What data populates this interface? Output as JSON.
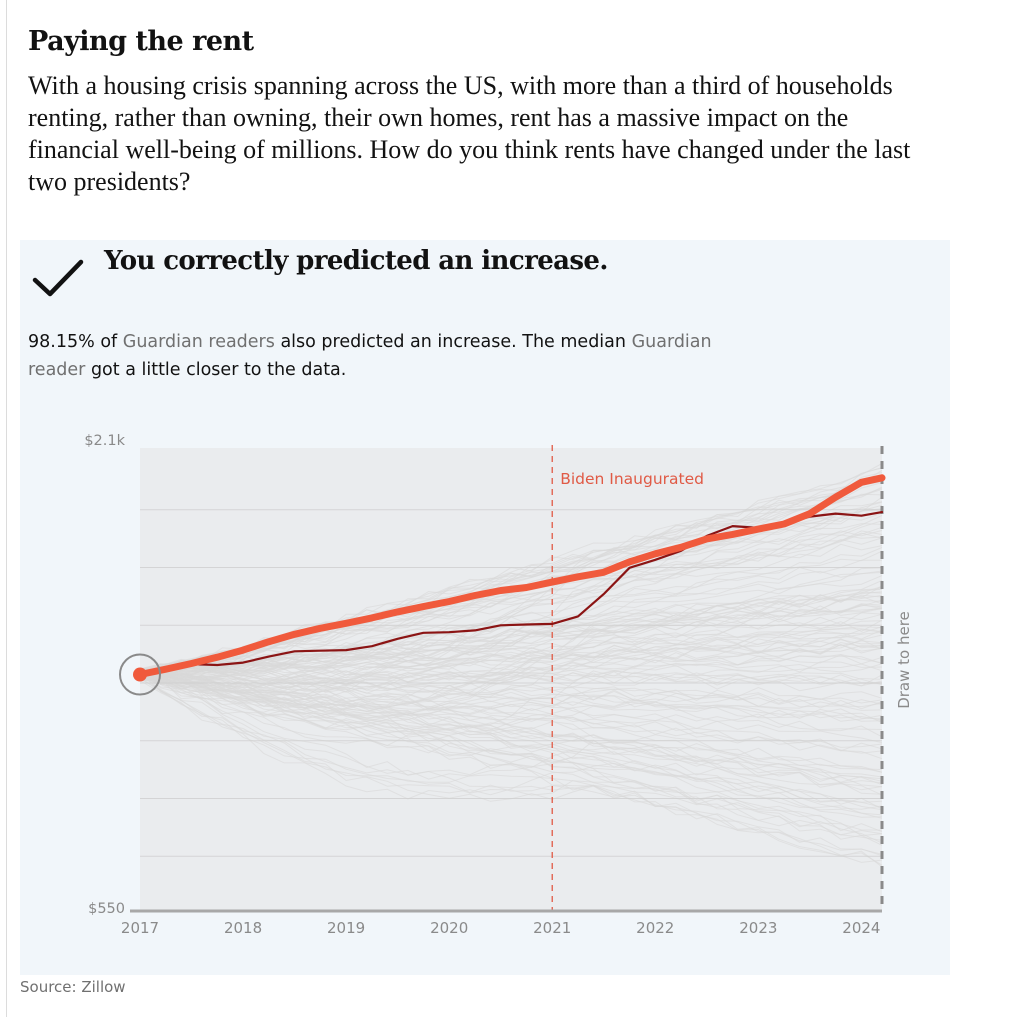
{
  "title": "Paying the rent",
  "standfirst": "With a housing crisis spanning across the US, with more than a third of households renting, rather than owning, their own homes, rent has a massive impact on the financial well-being of millions. How do you think rents have changed under the last two presidents?",
  "result": {
    "verdict": "You correctly predicted an increase.",
    "verdict_icon": "check-icon",
    "percent": "98.15%",
    "of": "of",
    "readers_1": "Guardian readers",
    "mid": "also predicted an increase. The median",
    "readers_2": "Guardian reader",
    "end": "got a little closer to the data."
  },
  "source": "Source: Zillow",
  "colors": {
    "actual_line": "#8b1414",
    "user_line": "#f05a3c",
    "reader_lines": "#d9d9d9",
    "annotation": "#e05a45",
    "panel_background": "#f1f6fa"
  },
  "chart_data": {
    "type": "line",
    "title": "",
    "xlabel": "",
    "ylabel": "",
    "xlim": [
      2017,
      2024.2
    ],
    "ylim": [
      550,
      2100
    ],
    "x_ticks": [
      "2017",
      "2018",
      "2019",
      "2020",
      "2021",
      "2022",
      "2023",
      "2024"
    ],
    "y_ticks": [
      "$550",
      "$2.1k"
    ],
    "grid": "horizontal",
    "annotations": [
      {
        "x": 2021.0,
        "label": "Biden Inaugurated"
      },
      {
        "x": 2024.2,
        "label": "Draw to here"
      }
    ],
    "reader_guesses": {
      "description_shown": "faint grey lines showing other readers' drawings",
      "color": "#d9d9d9"
    },
    "series": [
      {
        "role": "actual",
        "x": [
          2017.0,
          2017.25,
          2017.5,
          2017.75,
          2018.0,
          2018.25,
          2018.5,
          2018.75,
          2019.0,
          2019.25,
          2019.5,
          2019.75,
          2020.0,
          2020.25,
          2020.5,
          2020.75,
          2021.0,
          2021.25,
          2021.5,
          2021.75,
          2022.0,
          2022.25,
          2022.5,
          2022.75,
          2023.0,
          2023.25,
          2023.5,
          2023.75,
          2024.0,
          2024.2
        ],
        "y": [
          1340,
          1365,
          1375,
          1372,
          1380,
          1400,
          1418,
          1420,
          1422,
          1435,
          1460,
          1480,
          1482,
          1488,
          1505,
          1508,
          1510,
          1535,
          1610,
          1698,
          1725,
          1755,
          1805,
          1838,
          1832,
          1845,
          1870,
          1880,
          1873,
          1885
        ]
      },
      {
        "role": "your guess",
        "x": [
          2017.0,
          2017.25,
          2017.5,
          2017.75,
          2018.0,
          2018.25,
          2018.5,
          2018.75,
          2019.0,
          2019.25,
          2019.5,
          2019.75,
          2020.0,
          2020.25,
          2020.5,
          2020.75,
          2021.0,
          2021.25,
          2021.5,
          2021.75,
          2022.0,
          2022.25,
          2022.5,
          2022.75,
          2023.0,
          2023.25,
          2023.5,
          2023.75,
          2024.0,
          2024.2
        ],
        "y": [
          1340,
          1358,
          1377,
          1398,
          1422,
          1450,
          1475,
          1495,
          1512,
          1530,
          1550,
          1568,
          1585,
          1605,
          1622,
          1632,
          1650,
          1668,
          1683,
          1718,
          1745,
          1767,
          1795,
          1810,
          1828,
          1845,
          1880,
          1935,
          1985,
          2000
        ]
      }
    ]
  }
}
